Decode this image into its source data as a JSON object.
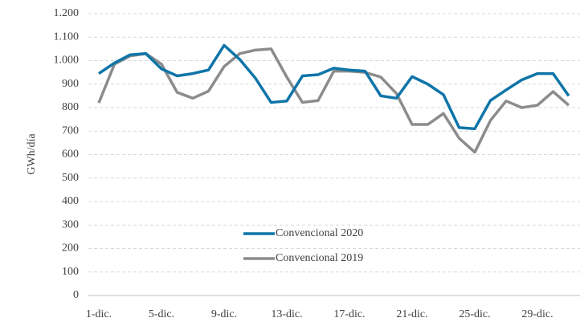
{
  "chart_data": {
    "type": "line",
    "y_label": "GWh/día",
    "categories": [
      "1-dic.",
      null,
      null,
      null,
      "5-dic.",
      null,
      null,
      null,
      "9-dic.",
      null,
      null,
      null,
      "13-dic.",
      null,
      null,
      null,
      "17-dic.",
      null,
      null,
      null,
      "21-dic.",
      null,
      null,
      null,
      "25-dic.",
      null,
      null,
      null,
      "29-dic.",
      null,
      null
    ],
    "series": [
      {
        "name": "Convencional 2020",
        "color": "#0f75a8",
        "values": [
          945,
          990,
          1025,
          1030,
          965,
          935,
          945,
          960,
          1065,
          1005,
          925,
          822,
          828,
          935,
          940,
          968,
          960,
          955,
          850,
          840,
          932,
          900,
          855,
          715,
          710,
          830,
          875,
          918,
          945,
          945,
          850
        ]
      },
      {
        "name": "Convencional 2019",
        "color": "#8c8c8c",
        "values": [
          820,
          985,
          1020,
          1030,
          985,
          865,
          840,
          870,
          975,
          1030,
          1045,
          1050,
          930,
          822,
          830,
          955,
          955,
          950,
          930,
          860,
          728,
          728,
          775,
          670,
          610,
          745,
          828,
          800,
          810,
          868,
          810
        ]
      }
    ],
    "ylim": [
      0,
      1200
    ],
    "yticks": [
      0,
      100,
      200,
      300,
      400,
      500,
      600,
      700,
      800,
      900,
      {
        "value": 1000,
        "label": "1.000"
      },
      {
        "value": 1100,
        "label": "1.100"
      },
      {
        "value": 1200,
        "label": "1.200"
      }
    ],
    "grid": true
  }
}
